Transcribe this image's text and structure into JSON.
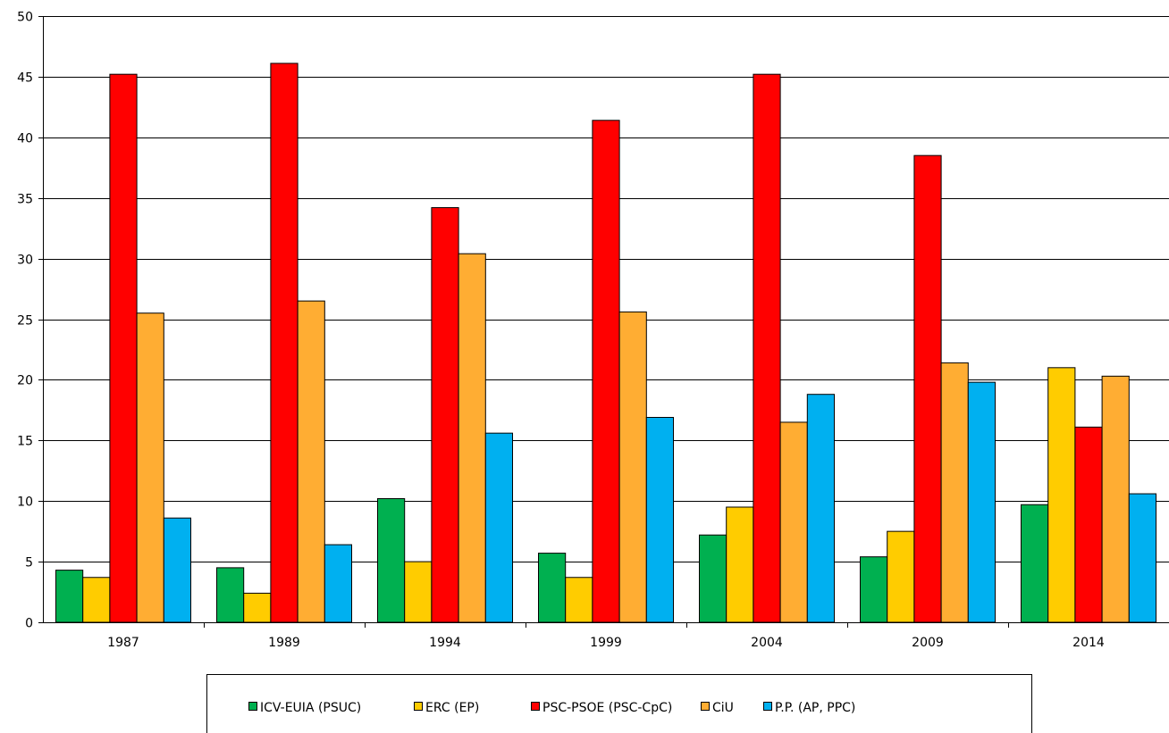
{
  "chart_data": {
    "type": "bar",
    "title": "",
    "xlabel": "",
    "ylabel": "",
    "ylim": [
      0,
      50
    ],
    "yticks": [
      0,
      5,
      10,
      15,
      20,
      25,
      30,
      35,
      40,
      45,
      50
    ],
    "grid": true,
    "legend_position": "bottom",
    "categories": [
      "1987",
      "1989",
      "1994",
      "1999",
      "2004",
      "2009",
      "2014"
    ],
    "series": [
      {
        "name": "ICV-EUIA (PSUC)",
        "color": "#00b050",
        "values": [
          4.3,
          4.5,
          10.2,
          5.7,
          7.2,
          5.4,
          9.7
        ]
      },
      {
        "name": "ERC (EP)",
        "color": "#ffcc00",
        "values": [
          3.7,
          2.4,
          5.0,
          3.7,
          9.5,
          7.5,
          21.0
        ]
      },
      {
        "name": "PSC-PSOE (PSC-CpC)",
        "color": "#ff0000",
        "values": [
          45.2,
          46.1,
          34.2,
          41.4,
          45.2,
          38.5,
          16.1
        ]
      },
      {
        "name": "CiU",
        "color": "#ffad33",
        "values": [
          25.5,
          26.5,
          30.4,
          25.6,
          16.5,
          21.4,
          20.3
        ]
      },
      {
        "name": "P.P. (AP, PPC)",
        "color": "#00b0f0",
        "values": [
          8.6,
          6.4,
          15.6,
          16.9,
          18.8,
          19.8,
          10.6
        ]
      }
    ]
  }
}
